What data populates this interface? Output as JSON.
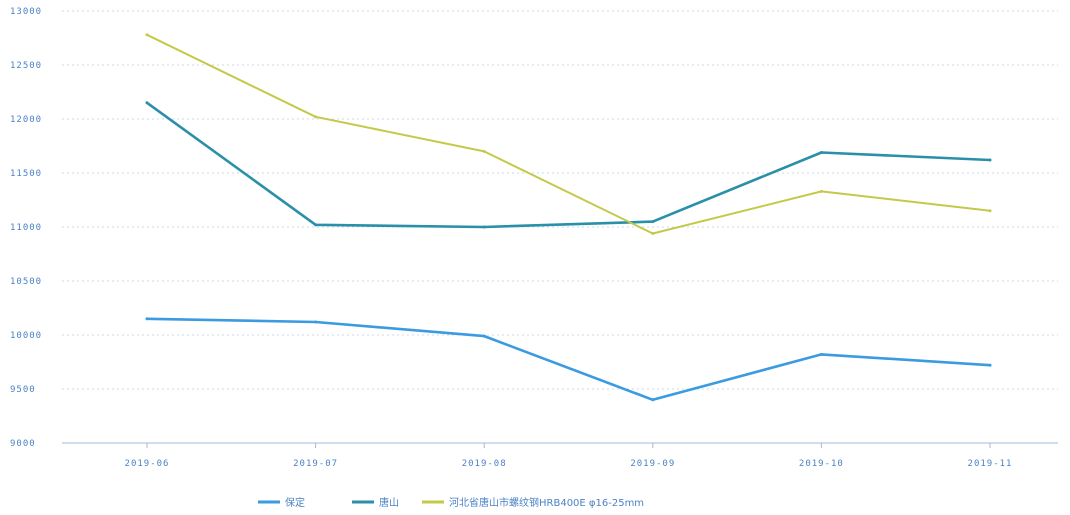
{
  "chart_data": {
    "type": "line",
    "categories": [
      "2019-06",
      "2019-07",
      "2019-08",
      "2019-09",
      "2019-10",
      "2019-11"
    ],
    "y_ticks": [
      "9000",
      "9500",
      "10000",
      "10500",
      "11000",
      "11500",
      "12000",
      "12500",
      "13000"
    ],
    "ylim": [
      9000,
      13000
    ],
    "grid": true,
    "legend_position": "bottom",
    "series": [
      {
        "name": "保定",
        "color": "#3a9be0",
        "values": [
          10150,
          10120,
          9990,
          9400,
          9820,
          9720
        ]
      },
      {
        "name": "唐山",
        "color": "#2a8fa8",
        "values": [
          12150,
          11020,
          11000,
          11050,
          11690,
          11620
        ]
      },
      {
        "name": "河北省唐山市螺纹钢HRB400E φ16-25mm",
        "color": "#c4c94a",
        "values": [
          12780,
          12020,
          11700,
          10940,
          11330,
          11150
        ]
      }
    ]
  }
}
